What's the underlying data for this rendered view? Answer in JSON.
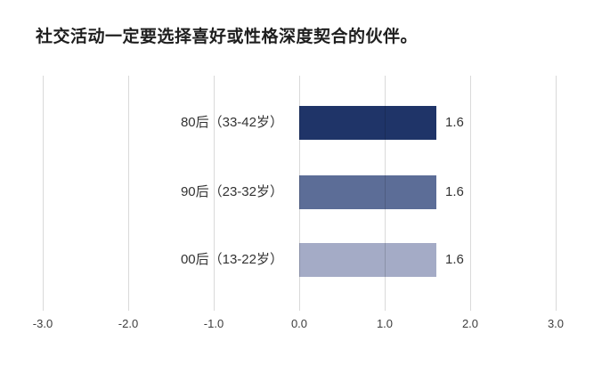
{
  "title": "社交活动一定要选择喜好或性格深度契合的伙伴。",
  "colors": {
    "background": "#ffffff",
    "title_text": "#1f1f1f",
    "label_text": "#333333",
    "tick_text": "#3d3d3d",
    "gridline": "#d9d9d9",
    "bar_80s": "#1f3468",
    "bar_90s": "#5c6d97",
    "bar_00s": "#a4abc6"
  },
  "chart_data": {
    "type": "bar",
    "orientation": "horizontal",
    "title": "社交活动一定要选择喜好或性格深度契合的伙伴。",
    "categories": [
      "80后（33-42岁）",
      "90后（23-32岁）",
      "00后（13-22岁）"
    ],
    "values": [
      1.6,
      1.6,
      1.6
    ],
    "value_labels": [
      "1.6",
      "1.6",
      "1.6"
    ],
    "bar_colors": [
      "#1f3468",
      "#5c6d97",
      "#a4abc6"
    ],
    "xlabel": "",
    "ylabel": "",
    "xlim": [
      -3.0,
      3.0
    ],
    "x_ticks": [
      "-3.0",
      "-2.0",
      "-1.0",
      "0.0",
      "1.0",
      "2.0",
      "3.0"
    ],
    "x_tick_values": [
      -3,
      -2,
      -1,
      0,
      1,
      2,
      3
    ],
    "grid": "vertical-gridlines-on",
    "legend": "none"
  }
}
